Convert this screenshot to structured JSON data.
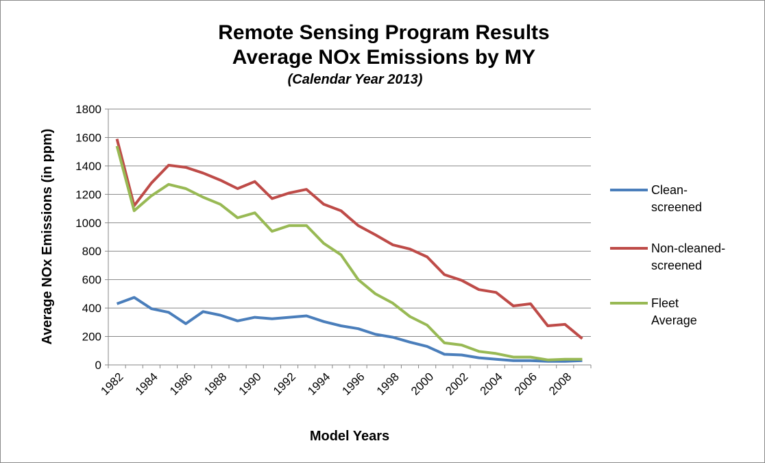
{
  "chart_data": {
    "type": "line",
    "title": [
      "Remote Sensing Program Results",
      "Average NOx Emissions by MY"
    ],
    "subtitle": "(Calendar Year 2013)",
    "x_label": "Model Years",
    "y_label": "Average NOx Emissions (in ppm)",
    "categories": [
      "1982",
      null,
      "1984",
      null,
      "1986",
      null,
      "1988",
      null,
      "1990",
      null,
      "1992",
      null,
      "1994",
      null,
      "1996",
      null,
      "1998",
      null,
      "2000",
      null,
      "2002",
      null,
      "2004",
      null,
      "2006",
      null,
      "2008",
      null
    ],
    "series": [
      {
        "name": "Clean-screened",
        "color": "#4a7ebb",
        "values": [
          430,
          475,
          395,
          370,
          290,
          375,
          350,
          310,
          335,
          325,
          335,
          345,
          305,
          275,
          255,
          215,
          195,
          160,
          130,
          75,
          70,
          50,
          40,
          30,
          30,
          25,
          25,
          30
        ]
      },
      {
        "name": "Non-cleaned-screened",
        "color": "#be4b48",
        "values": [
          1590,
          1120,
          1280,
          1405,
          1390,
          1350,
          1300,
          1240,
          1290,
          1170,
          1210,
          1235,
          1130,
          1085,
          980,
          915,
          845,
          815,
          760,
          635,
          595,
          530,
          510,
          415,
          430,
          275,
          285,
          185
        ]
      },
      {
        "name": "Fleet Average",
        "color": "#98b954",
        "values": [
          1540,
          1085,
          1190,
          1270,
          1240,
          1180,
          1130,
          1035,
          1070,
          940,
          980,
          980,
          855,
          775,
          600,
          500,
          435,
          340,
          280,
          155,
          140,
          95,
          80,
          55,
          55,
          35,
          40,
          40
        ]
      }
    ],
    "ylim": [
      0,
      1800
    ],
    "yticks": [
      0,
      200,
      400,
      600,
      800,
      1000,
      1200,
      1400,
      1600,
      1800
    ],
    "grid": true,
    "legend": "right"
  }
}
